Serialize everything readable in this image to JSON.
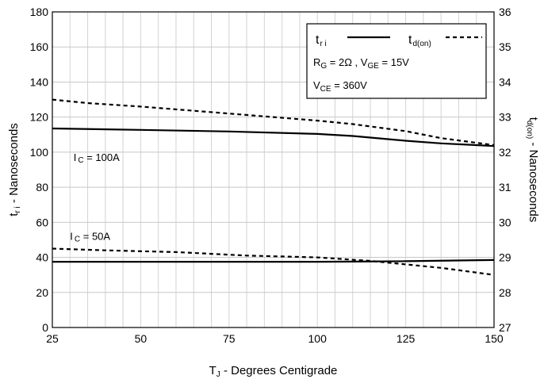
{
  "chart_data": {
    "type": "line",
    "x_axis": {
      "label_main": "T",
      "label_sub": "J",
      "label_rest": " - Degrees Centigrade",
      "lim": [
        25,
        150
      ],
      "ticks": [
        25,
        50,
        75,
        100,
        125,
        150
      ]
    },
    "y_left": {
      "label_main": "t",
      "label_sub": "r i",
      "label_rest": " - Nanoseconds",
      "lim": [
        0,
        180
      ],
      "ticks": [
        0,
        20,
        40,
        60,
        80,
        100,
        120,
        140,
        160,
        180
      ]
    },
    "y_right": {
      "label_main": "t",
      "label_sub": "d(on)",
      "label_rest": " - Nanoseconds",
      "lim": [
        27,
        36
      ],
      "ticks": [
        27,
        28,
        29,
        30,
        31,
        32,
        33,
        34,
        35,
        36
      ]
    },
    "grid": true,
    "series": [
      {
        "axis": "left",
        "style": "solid",
        "x": [
          25,
          50,
          75,
          100,
          110,
          125,
          135,
          145,
          150
        ],
        "y": [
          113.5,
          112.7,
          111.8,
          110.4,
          109.2,
          106.5,
          105.0,
          104.0,
          103.5
        ]
      },
      {
        "axis": "right",
        "style": "dashed",
        "x": [
          25,
          35,
          50,
          75,
          100,
          110,
          125,
          135,
          150
        ],
        "y": [
          33.5,
          33.4,
          33.3,
          33.1,
          32.9,
          32.8,
          32.6,
          32.4,
          32.2
        ]
      },
      {
        "axis": "left",
        "style": "solid",
        "x": [
          25,
          50,
          75,
          100,
          110,
          125,
          150
        ],
        "y": [
          37.5,
          37.5,
          37.5,
          37.5,
          37.6,
          37.8,
          38.5
        ]
      },
      {
        "axis": "right",
        "style": "dashed",
        "x": [
          25,
          40,
          60,
          80,
          100,
          115,
          125,
          135,
          150
        ],
        "y": [
          29.25,
          29.2,
          29.15,
          29.05,
          29.0,
          28.9,
          28.8,
          28.7,
          28.5
        ]
      }
    ],
    "annotations": [
      {
        "main": "I",
        "sub": "C",
        "rest": " = 100A",
        "x": 31,
        "y": 95
      },
      {
        "main": "I",
        "sub": "C",
        "rest": " = 50A",
        "x": 30,
        "y": 50
      }
    ],
    "legend": {
      "placement": "top-right",
      "tri": {
        "main": "t",
        "sub": "r i"
      },
      "tdon": {
        "main": "t",
        "sub": "d(on)"
      },
      "cond1": {
        "rg_main": "R",
        "rg_sub": "G",
        "rg_rest": " = 2Ω ,  V",
        "vge_sub": "GE",
        "vge_rest": " = 15V"
      },
      "cond2": {
        "main": "V",
        "sub": "CE",
        "rest": " = 360V"
      }
    }
  }
}
